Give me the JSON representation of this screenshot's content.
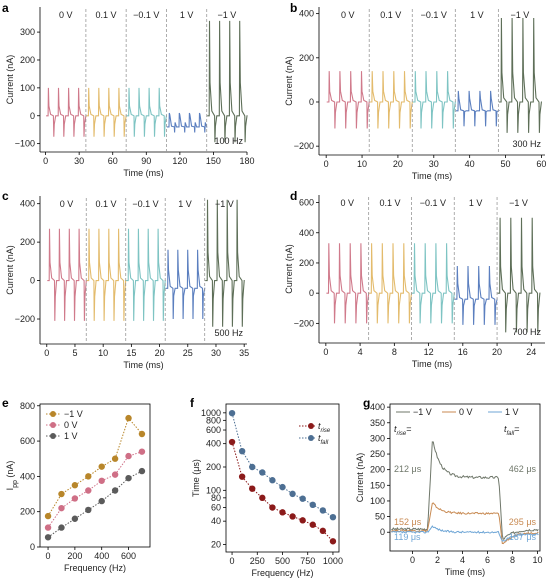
{
  "colors": {
    "seg_0V": "#d07a8b",
    "seg_0p1V": "#e3bb6c",
    "seg_m0p1V": "#7ec4c3",
    "seg_1V": "#5b7fbf",
    "seg_m1V": "#5e6f58",
    "e_m1V": "#b8862a",
    "e_0V": "#cf6f86",
    "e_1V": "#5b5b5b",
    "f_rise": "#8b1a1a",
    "f_fall": "#4d6f93",
    "g_m1V": "#6f776a",
    "g_0V": "#c88a52",
    "g_1V": "#6fa6d6"
  },
  "chart_data": [
    {
      "panel": "a",
      "type": "line",
      "segments": [
        "0 V",
        "0.1 V",
        "−0.1 V",
        "1 V",
        "−1 V"
      ],
      "segment_bounds": [
        0,
        36,
        72,
        108,
        144,
        180
      ],
      "pulse_peaks": [
        100,
        100,
        100,
        10,
        340
      ],
      "pulse_troughs": [
        -75,
        -75,
        -75,
        -60,
        -95
      ],
      "xlabel": "Time (ms)",
      "ylabel": "Current (nA)",
      "xlim": [
        -5,
        180
      ],
      "ylim": [
        -130,
        390
      ],
      "xticks": [
        0,
        30,
        60,
        90,
        120,
        150,
        180
      ],
      "yticks": [
        -100,
        0,
        100,
        200,
        300
      ],
      "note": "100 Hz"
    },
    {
      "panel": "b",
      "type": "line",
      "segments": [
        "0 V",
        "0.1 V",
        "−0.1 V",
        "1 V",
        "−1 V"
      ],
      "segment_bounds": [
        0,
        12,
        24,
        36,
        48,
        60
      ],
      "pulse_peaks": [
        140,
        140,
        140,
        50,
        380
      ],
      "pulse_troughs": [
        -120,
        -120,
        -120,
        -110,
        -140
      ],
      "xlabel": "Time (ms)",
      "ylabel": "Current (nA)",
      "xlim": [
        -2,
        61
      ],
      "ylim": [
        -240,
        430
      ],
      "xticks": [
        0,
        10,
        20,
        30,
        40,
        50,
        60
      ],
      "yticks": [
        -200,
        0,
        200,
        400
      ],
      "note": "300 Hz"
    },
    {
      "panel": "c",
      "type": "line",
      "segments": [
        "0 V",
        "0.1 V",
        "−0.1 V",
        "1 V",
        "−1 V"
      ],
      "segment_bounds": [
        0,
        7,
        14,
        21,
        28,
        35
      ],
      "pulse_peaks": [
        270,
        270,
        270,
        160,
        420
      ],
      "pulse_troughs": [
        -210,
        -210,
        -210,
        -200,
        -240
      ],
      "xlabel": "Time (ms)",
      "ylabel": "Current (nA)",
      "xlim": [
        -1.2,
        35.5
      ],
      "ylim": [
        -330,
        440
      ],
      "xticks": [
        0,
        5,
        10,
        15,
        20,
        25,
        30,
        35
      ],
      "yticks": [
        -200,
        0,
        200,
        400
      ],
      "note": "500 Hz"
    },
    {
      "panel": "d",
      "type": "line",
      "segments": [
        "0 V",
        "0.1 V",
        "−0.1 V",
        "1 V",
        "−1 V"
      ],
      "segment_bounds": [
        0,
        5,
        10,
        15,
        20,
        25
      ],
      "pulse_peaks": [
        330,
        330,
        330,
        180,
        500
      ],
      "pulse_troughs": [
        -200,
        -200,
        -200,
        -210,
        -260
      ],
      "xlabel": "Time (ms)",
      "ylabel": "Current (nA)",
      "xlim": [
        -0.8,
        25.6
      ],
      "ylim": [
        -330,
        650
      ],
      "xticks": [
        0,
        4,
        8,
        12,
        16,
        20,
        24
      ],
      "yticks": [
        -200,
        0,
        200,
        400,
        600
      ],
      "note": "700 Hz"
    },
    {
      "panel": "e",
      "type": "line",
      "x": [
        0,
        100,
        200,
        300,
        400,
        500,
        600,
        700
      ],
      "series": [
        {
          "name": "−1 V",
          "values": [
            175,
            300,
            350,
            400,
            455,
            500,
            730,
            640
          ]
        },
        {
          "name": "0 V",
          "values": [
            110,
            220,
            275,
            320,
            375,
            410,
            515,
            540
          ]
        },
        {
          "name": "1 V",
          "values": [
            55,
            110,
            160,
            210,
            260,
            320,
            390,
            430
          ]
        }
      ],
      "xlabel": "Frequency (Hz)",
      "ylabel": "I",
      "ylabel_sub": "pp",
      "ylabel_unit": " (nA)",
      "xlim": [
        -60,
        760
      ],
      "ylim": [
        0,
        810
      ],
      "xticks": [
        0,
        200,
        400,
        600
      ],
      "yticks": [
        0,
        200,
        400,
        600,
        800
      ]
    },
    {
      "panel": "f",
      "type": "line",
      "x": [
        0,
        100,
        200,
        300,
        400,
        500,
        600,
        700,
        800,
        900,
        1000
      ],
      "series": [
        {
          "name": "t",
          "sub": "rise",
          "values": [
            420,
            150,
            105,
            80,
            60,
            52,
            46,
            41,
            36,
            30,
            22
          ]
        },
        {
          "name": "t",
          "sub": "fall",
          "values": [
            990,
            320,
            200,
            170,
            135,
            110,
            90,
            78,
            65,
            55,
            45
          ]
        }
      ],
      "xlabel": "Frequency (Hz)",
      "ylabel": "Time (μs)",
      "scale": "log",
      "xlim": [
        -60,
        1060
      ],
      "ylim": [
        16,
        1300
      ],
      "xticks": [
        0,
        250,
        500,
        750,
        1000
      ],
      "yticks": [
        20,
        40,
        60,
        80,
        100,
        200,
        400,
        600,
        800,
        1000
      ]
    },
    {
      "panel": "g",
      "type": "line",
      "legend": [
        "−1 V",
        "0 V",
        "1 V"
      ],
      "xlabel": "Time (ms)",
      "ylabel": "Current (nA)",
      "xlim": [
        -1.8,
        10.2
      ],
      "ylim": [
        -60,
        410
      ],
      "xticks": [
        0,
        2,
        4,
        6,
        8,
        10
      ],
      "yticks": [
        0,
        50,
        100,
        150,
        200,
        250,
        300,
        350,
        400
      ],
      "annotations": {
        "trise_label": "t",
        "trise_sub": "rise",
        "tfall_label": "t",
        "tfall_sub": "fall",
        "eq": "=",
        "rise_m1V": "212 μs",
        "rise_0V": "152 μs",
        "rise_1V": "119 μs",
        "fall_m1V": "462 μs",
        "fall_0V": "295 μs",
        "fall_1V": "167 μs"
      }
    }
  ],
  "panel_letters": [
    "a",
    "b",
    "c",
    "d",
    "e",
    "f",
    "g"
  ],
  "legend_e": [
    "−1 V",
    "0 V",
    "1 V"
  ]
}
